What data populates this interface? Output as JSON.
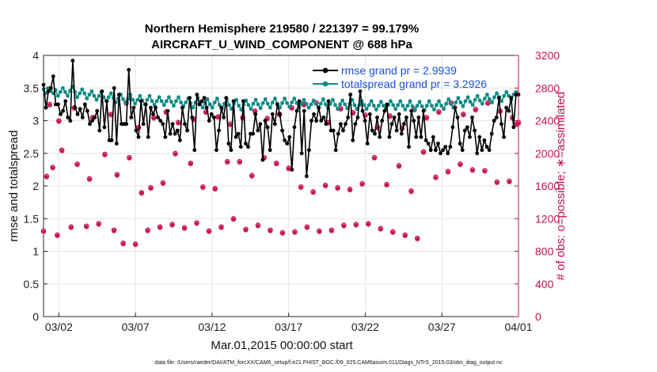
{
  "chart_data": {
    "type": "line",
    "title_line1": "Northern Hemisphere 219580 / 221397 = 99.179%",
    "title_line2": "AIRCRAFT_U_WIND_COMPONENT @ 688 hPa",
    "xlabel": "Mar.01,2015 00:00:00 start",
    "ylabel_left": "rmse and totalspread",
    "ylabel_right": "# of obs: o=possible; ∗=assimilated",
    "footnote": "data file: /Users/raeder/DAI/ATM_forcXX/CAM6_setup/f.e21.FHIST_BGC.f09_025.CAM6assim.011/Diags_NTrS_2015-03/obs_diag_output.nc",
    "x_ticks": [
      "03/02",
      "03/07",
      "03/12",
      "03/17",
      "03/22",
      "03/27",
      "04/01"
    ],
    "x_tick_days": [
      1,
      6,
      11,
      16,
      21,
      26,
      31
    ],
    "xlim_days": [
      0,
      31
    ],
    "y_left_ticks": [
      "0",
      "0.5",
      "1",
      "1.5",
      "2",
      "2.5",
      "3",
      "3.5",
      "4"
    ],
    "ylim_left": [
      0,
      4
    ],
    "y_right_ticks": [
      "0",
      "400",
      "800",
      "1200",
      "1600",
      "2000",
      "2400",
      "2800",
      "3200"
    ],
    "ylim_right": [
      0,
      3200
    ],
    "colors": {
      "rmse": "#000000",
      "spread": "#0e8a85",
      "obs": "#c8104f",
      "legend_text": "#1a4fe0"
    },
    "legend": [
      "rmse grand pr = 2.9939",
      "totalspread grand pr = 3.2926"
    ],
    "series": [
      {
        "name": "rmse",
        "values": [
          3.55,
          3.2,
          3.45,
          3.5,
          3.68,
          3.25,
          3.25,
          3.1,
          3.15,
          3.3,
          3.05,
          3.0,
          3.92,
          3.2,
          3.1,
          3.18,
          3.05,
          3.25,
          3.15,
          2.95,
          3.0,
          3.05,
          3.15,
          2.85,
          3.45,
          2.9,
          3.3,
          2.7,
          2.7,
          3.5,
          2.65,
          3.4,
          2.95,
          2.95,
          2.95,
          3.78,
          3.05,
          3.2,
          2.85,
          2.75,
          3.3,
          2.95,
          3.25,
          2.75,
          3.2,
          3.1,
          3.2,
          3.05,
          3.0,
          2.95,
          2.75,
          3.15,
          2.8,
          2.95,
          2.8,
          2.85,
          2.7,
          3.2,
          2.95,
          2.85,
          3.35,
          3.05,
          2.55,
          3.4,
          3.25,
          3.3,
          3.35,
          3.2,
          3.0,
          3.1,
          3.05,
          2.55,
          2.85,
          3.2,
          3.05,
          3.35,
          2.65,
          2.55,
          3.3,
          2.75,
          2.8,
          2.6,
          3.3,
          2.65,
          2.6,
          2.8,
          2.8,
          3.1,
          2.85,
          2.95,
          2.4,
          3.0,
          2.9,
          2.55,
          3.1,
          2.95,
          3.25,
          3.1,
          2.85,
          2.7,
          2.65,
          2.75,
          2.25,
          2.9,
          3.15,
          3.3,
          2.5,
          3.15,
          2.15,
          2.55,
          3.0,
          3.1,
          3.0,
          3.2,
          3.0,
          3.05,
          2.95,
          3.3,
          2.85,
          2.85,
          2.55,
          2.8,
          2.95,
          2.85,
          2.95,
          3.05,
          3.4,
          2.7,
          2.95,
          3.05,
          3.45,
          3.15,
          3.0,
          2.65,
          3.1,
          2.85,
          2.8,
          3.05,
          2.75,
          3.0,
          3.15,
          3.25,
          2.75,
          2.95,
          3.05,
          2.85,
          3.1,
          2.8,
          2.95,
          3.05,
          2.6,
          3.15,
          3.0,
          2.75,
          3.05,
          2.75,
          3.15,
          2.7,
          2.65,
          2.55,
          2.75,
          2.55,
          2.65,
          2.5,
          2.55,
          2.6,
          2.5,
          2.6,
          2.9,
          3.2,
          3.05,
          2.65,
          2.55,
          2.85,
          2.9,
          2.75,
          3.05,
          2.85,
          2.5,
          2.75,
          2.55,
          2.7,
          2.6,
          2.55,
          2.8,
          3.0,
          3.05,
          3.35,
          2.95,
          2.75,
          3.2,
          3.15,
          3.35,
          2.9,
          3.4,
          3.4
        ]
      },
      {
        "name": "totalspread",
        "values": [
          3.48,
          3.42,
          3.5,
          3.46,
          3.42,
          3.47,
          3.38,
          3.44,
          3.5,
          3.44,
          3.38,
          3.46,
          3.52,
          3.44,
          3.36,
          3.42,
          3.48,
          3.42,
          3.34,
          3.4,
          3.45,
          3.38,
          3.32,
          3.38,
          3.44,
          3.36,
          3.3,
          3.36,
          3.42,
          3.35,
          3.28,
          3.34,
          3.4,
          3.33,
          3.27,
          3.33,
          3.4,
          3.32,
          3.26,
          3.32,
          3.38,
          3.31,
          3.25,
          3.32,
          3.38,
          3.3,
          3.24,
          3.3,
          3.36,
          3.3,
          3.24,
          3.3,
          3.36,
          3.29,
          3.23,
          3.3,
          3.36,
          3.28,
          3.22,
          3.28,
          3.34,
          3.27,
          3.2,
          3.28,
          3.35,
          3.26,
          3.2,
          3.27,
          3.33,
          3.25,
          3.2,
          3.28,
          3.34,
          3.24,
          3.18,
          3.26,
          3.32,
          3.24,
          3.18,
          3.26,
          3.32,
          3.23,
          3.17,
          3.25,
          3.31,
          3.24,
          3.18,
          3.26,
          3.32,
          3.25,
          3.19,
          3.27,
          3.33,
          3.26,
          3.2,
          3.28,
          3.34,
          3.26,
          3.2,
          3.27,
          3.34,
          3.27,
          3.21,
          3.28,
          3.34,
          3.27,
          3.2,
          3.26,
          3.32,
          3.26,
          3.2,
          3.25,
          3.31,
          3.26,
          3.2,
          3.26,
          3.33,
          3.25,
          3.19,
          3.26,
          3.32,
          3.24,
          3.18,
          3.25,
          3.31,
          3.25,
          3.19,
          3.26,
          3.32,
          3.24,
          3.18,
          3.24,
          3.3,
          3.24,
          3.18,
          3.24,
          3.3,
          3.23,
          3.17,
          3.23,
          3.29,
          3.23,
          3.17,
          3.24,
          3.3,
          3.24,
          3.18,
          3.24,
          3.3,
          3.23,
          3.17,
          3.23,
          3.3,
          3.22,
          3.16,
          3.23,
          3.29,
          3.22,
          3.16,
          3.23,
          3.3,
          3.23,
          3.17,
          3.24,
          3.3,
          3.23,
          3.18,
          3.26,
          3.33,
          3.26,
          3.2,
          3.28,
          3.35,
          3.28,
          3.22,
          3.3,
          3.36,
          3.29,
          3.24,
          3.32,
          3.38,
          3.31,
          3.26,
          3.34,
          3.4,
          3.33,
          3.28,
          3.36,
          3.42,
          3.36,
          3.3,
          3.38,
          3.44,
          3.38,
          3.32,
          3.4,
          3.44,
          3.4
        ]
      }
    ],
    "obs_counts": {
      "possible": [
        1050,
        1000,
        1100,
        1110,
        1140,
        1060,
        900,
        890,
        1060,
        1100,
        1130,
        1090,
        1150,
        1050,
        1100,
        1200,
        1070,
        1120,
        1060,
        1030,
        1040,
        1100,
        1050,
        1060,
        1120,
        1130,
        1140,
        1080,
        1040,
        1000,
        960,
        1720,
        1830,
        2040,
        1870,
        1690,
        1990,
        1740,
        1950,
        1520,
        1580,
        1640,
        2000,
        1880,
        1590,
        1570,
        1900,
        1900,
        1730,
        1950,
        1880,
        1820,
        1590,
        1530,
        1610,
        1580,
        1560,
        1630,
        1950,
        1620,
        1850,
        1540,
        2020,
        1710,
        1780,
        1870,
        1800,
        1790,
        1650,
        1660,
        2600,
        2400,
        2560,
        2440,
        2480,
        2620,
        2320,
        2440,
        2510,
        2380,
        2420,
        2510,
        2450,
        2360,
        2440,
        2520,
        2430,
        2480,
        2560,
        2600,
        2620,
        2380,
        2550,
        2500,
        2470,
        2320,
        2460,
        2310,
        2540,
        2440,
        2510,
        2620,
        2480,
        2540,
        2620,
        2520,
        2440,
        2360,
        2380
      ],
      "assimilated": [
        1040,
        990,
        1090,
        1100,
        1130,
        1050,
        890,
        880,
        1050,
        1090,
        1120,
        1080,
        1140,
        1040,
        1090,
        1190,
        1060,
        1110,
        1050,
        1020,
        1030,
        1090,
        1040,
        1050,
        1110,
        1120,
        1130,
        1070,
        1030,
        990,
        950,
        1710,
        1820,
        2030,
        1860,
        1680,
        1980,
        1730,
        1940,
        1510,
        1570,
        1630,
        1990,
        1870,
        1580,
        1560,
        1890,
        1890,
        1720,
        1940,
        1870,
        1810,
        1580,
        1520,
        1600,
        1570,
        1550,
        1620,
        1940,
        1610,
        1840,
        1530,
        2010,
        1700,
        1770,
        1860,
        1790,
        1780,
        1640,
        1650,
        2590,
        2390,
        2550,
        2430,
        2470,
        2610,
        2310,
        2430,
        2500,
        2370,
        2410,
        2500,
        2440,
        2350,
        2430,
        2510,
        2420,
        2470,
        2550,
        2590,
        2610,
        2370,
        2540,
        2490,
        2460,
        2310,
        2450,
        2300,
        2530,
        2430,
        2500,
        2610,
        2470,
        2530,
        2610,
        2510,
        2430,
        2350,
        2370
      ],
      "day_offsets": [
        0.0,
        0.9,
        1.8,
        2.8,
        3.6,
        4.6,
        5.2,
        6.0,
        6.8,
        7.6,
        8.4,
        9.2,
        10.0,
        10.8,
        11.6,
        12.4,
        13.2,
        14.0,
        14.8,
        15.6,
        16.4,
        17.2,
        18.0,
        18.8,
        19.6,
        20.4,
        21.2,
        22.0,
        22.8,
        23.6,
        24.4,
        0.2,
        0.6,
        1.2,
        2.2,
        3.0,
        4.0,
        4.8,
        5.6,
        6.4,
        7.0,
        7.8,
        8.6,
        9.6,
        10.4,
        11.2,
        12.0,
        12.8,
        13.6,
        14.4,
        15.2,
        16.0,
        16.8,
        17.6,
        18.4,
        19.2,
        20.0,
        20.8,
        21.6,
        22.4,
        23.2,
        24.0,
        24.8,
        25.6,
        26.4,
        27.2,
        28.0,
        28.8,
        29.6,
        30.4,
        0.4,
        1.0,
        2.0,
        3.2,
        4.4,
        5.4,
        6.2,
        7.2,
        8.0,
        8.8,
        9.8,
        10.6,
        11.4,
        12.2,
        13.0,
        13.8,
        14.6,
        15.4,
        16.2,
        17.0,
        17.8,
        18.6,
        19.4,
        20.2,
        21.0,
        21.8,
        22.6,
        23.4,
        24.2,
        25.0,
        25.8,
        26.6,
        27.4,
        28.2,
        29.0,
        29.8,
        30.6,
        30.9,
        31.0
      ]
    }
  }
}
